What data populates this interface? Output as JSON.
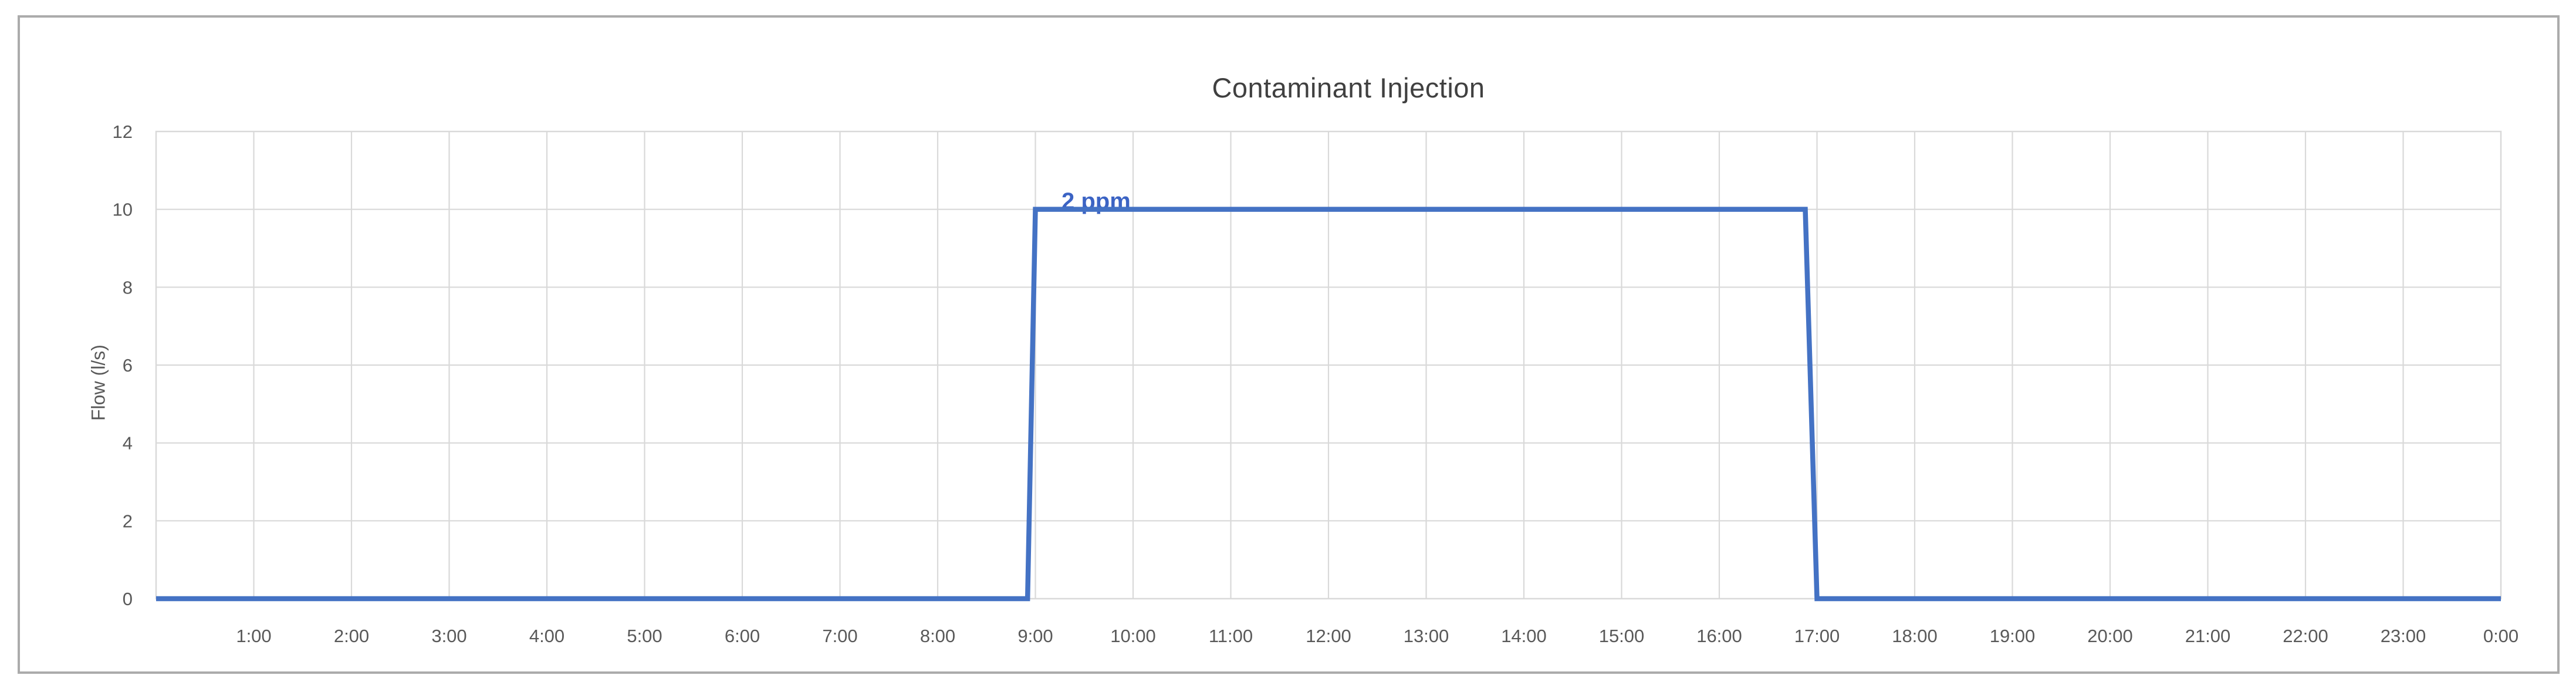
{
  "chart_data": {
    "type": "line",
    "title": "Contaminant Injection",
    "xlabel": "",
    "ylabel": "Flow (l/s)",
    "xlim_hours": [
      0,
      24
    ],
    "ylim": [
      0,
      12
    ],
    "grid": true,
    "legend": false,
    "y_ticks": [
      0,
      2,
      4,
      6,
      8,
      10,
      12
    ],
    "y_tick_labels": [
      "0",
      "2",
      "4",
      "6",
      "8",
      "10",
      "12"
    ],
    "x_tick_hours": [
      1,
      2,
      3,
      4,
      5,
      6,
      7,
      8,
      9,
      10,
      11,
      12,
      13,
      14,
      15,
      16,
      17,
      18,
      19,
      20,
      21,
      22,
      23,
      24
    ],
    "x_tick_labels": [
      "1:00",
      "2:00",
      "3:00",
      "4:00",
      "5:00",
      "6:00",
      "7:00",
      "8:00",
      "9:00",
      "10:00",
      "11:00",
      "12:00",
      "13:00",
      "14:00",
      "15:00",
      "16:00",
      "17:00",
      "18:00",
      "19:00",
      "20:00",
      "21:00",
      "22:00",
      "23:00",
      "0:00"
    ],
    "series": [
      {
        "points_hour_flow": [
          [
            0,
            0
          ],
          [
            8.92,
            0
          ],
          [
            9,
            10
          ],
          [
            16.88,
            10
          ],
          [
            17,
            0
          ],
          [
            24,
            0
          ]
        ],
        "pulse_summary": "Flow is 0 l/s except 10 l/s between 9:00 and 17:00",
        "color": "#4472C4"
      }
    ],
    "annotation": {
      "text": "2 ppm",
      "at_hour": 9,
      "at_value": 10,
      "color": "#3B63C4"
    }
  },
  "colors": {
    "background": "#FFFFFF",
    "frame_border": "#ABABAB",
    "gridline": "#D9D9D9",
    "plot_border": "#D9D9D9",
    "tick_text": "#595959",
    "title_text": "#404040",
    "series_line": "#4472C4"
  }
}
